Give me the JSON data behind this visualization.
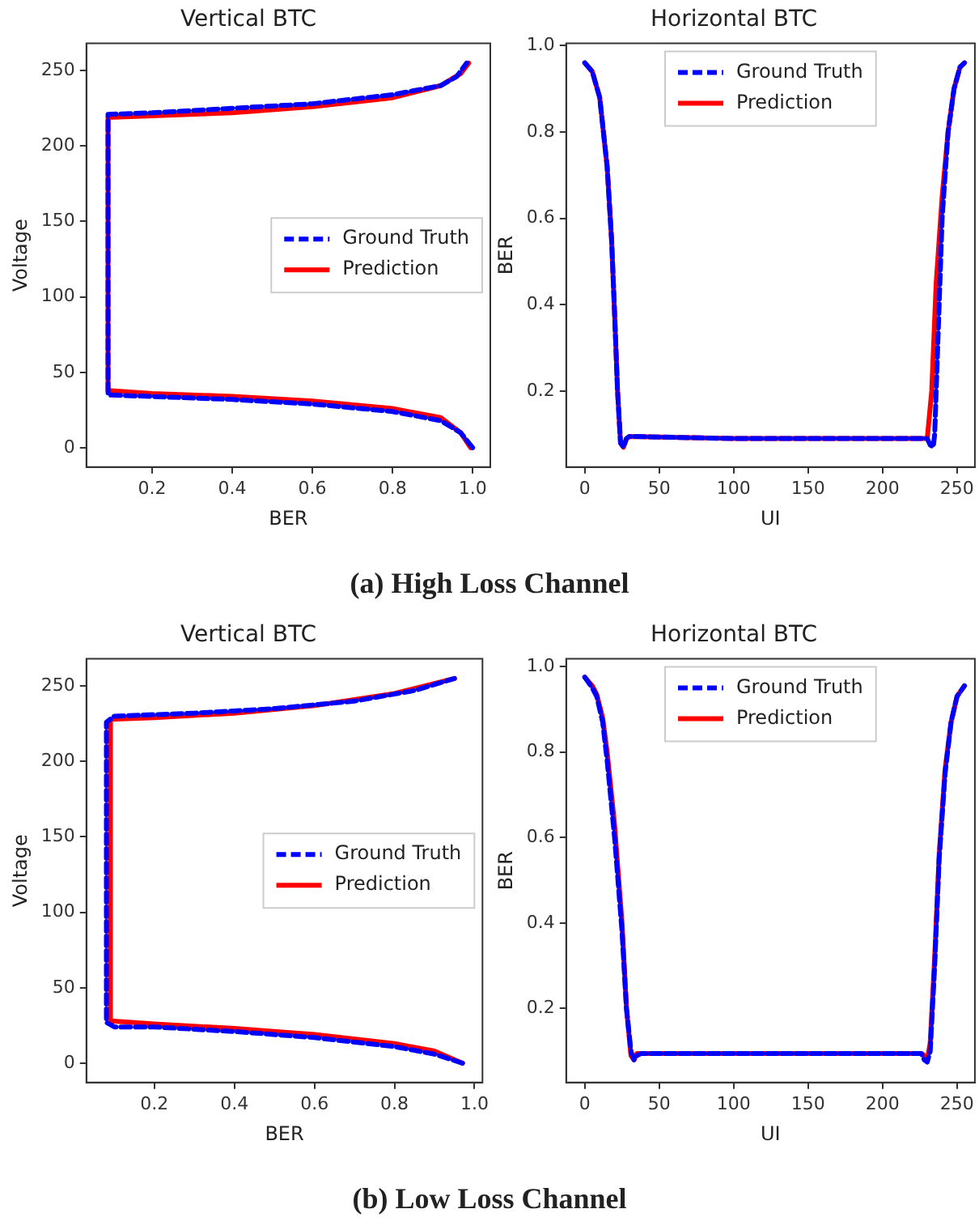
{
  "chart_data": [
    {
      "type": "line",
      "title": "Vertical BTC",
      "xlabel": "BER",
      "ylabel": "Voltage",
      "xlim": [
        0.036,
        1.044
      ],
      "ylim": [
        -12.8,
        268
      ],
      "xticks": [
        0.2,
        0.4,
        0.6,
        0.8,
        {
          "value": 1,
          "label": "1.0"
        }
      ],
      "yticks": [
        0,
        50,
        100,
        150,
        200,
        250
      ],
      "grid": false,
      "legend": "right",
      "annotations": [
        "(a) High Loss Channel"
      ],
      "series": [
        {
          "name": "Ground Truth",
          "color": "#0000ff",
          "line_style": "dashed",
          "x": [
            1.0,
            0.97,
            0.92,
            0.8,
            0.6,
            0.4,
            0.2,
            0.09,
            0.09,
            0.2,
            0.4,
            0.6,
            0.8,
            0.92,
            0.96,
            0.985
          ],
          "values": [
            0,
            10,
            18,
            24,
            29,
            32,
            34,
            35,
            221,
            222,
            225,
            228,
            234,
            240,
            246,
            255
          ]
        },
        {
          "name": "Prediction",
          "color": "#ff0000",
          "line_style": "solid",
          "x": [
            0.995,
            0.97,
            0.92,
            0.8,
            0.6,
            0.4,
            0.2,
            0.09,
            0.09,
            0.2,
            0.4,
            0.6,
            0.8,
            0.92,
            0.97,
            0.99
          ],
          "values": [
            0,
            10,
            20,
            26,
            31,
            34,
            36,
            38,
            219,
            220,
            222,
            226,
            232,
            240,
            248,
            255
          ]
        }
      ]
    },
    {
      "type": "line",
      "title": "Horizontal BTC",
      "xlabel": "UI",
      "ylabel": "BER",
      "xlim": [
        -12.5,
        262
      ],
      "ylim": [
        0.024,
        1.005
      ],
      "xticks": [
        0,
        50,
        100,
        150,
        200,
        250
      ],
      "yticks": [
        0.2,
        0.4,
        0.6,
        0.8,
        {
          "value": 1,
          "label": "1.0"
        }
      ],
      "grid": false,
      "legend": "top",
      "series": [
        {
          "name": "Ground Truth",
          "color": "#0000ff",
          "line_style": "dashed",
          "x": [
            0,
            5,
            10,
            15,
            18,
            20,
            22,
            24,
            26,
            28,
            30,
            100,
            200,
            230,
            232,
            234,
            235,
            237,
            240,
            244,
            248,
            252,
            255
          ],
          "values": [
            0.96,
            0.94,
            0.88,
            0.72,
            0.55,
            0.38,
            0.2,
            0.08,
            0.07,
            0.09,
            0.095,
            0.09,
            0.09,
            0.09,
            0.075,
            0.07,
            0.1,
            0.3,
            0.6,
            0.8,
            0.9,
            0.95,
            0.96
          ]
        },
        {
          "name": "Prediction",
          "color": "#ff0000",
          "line_style": "solid",
          "x": [
            0,
            5,
            10,
            15,
            18,
            20,
            22,
            24,
            26,
            28,
            30,
            100,
            200,
            230,
            231,
            233,
            236,
            240,
            244,
            248,
            252,
            255
          ],
          "values": [
            0.96,
            0.94,
            0.88,
            0.72,
            0.55,
            0.38,
            0.2,
            0.08,
            0.07,
            0.09,
            0.095,
            0.09,
            0.09,
            0.09,
            0.09,
            0.2,
            0.45,
            0.65,
            0.8,
            0.9,
            0.95,
            0.96
          ]
        }
      ]
    },
    {
      "type": "line",
      "title": "Vertical BTC",
      "xlabel": "BER",
      "ylabel": "Voltage",
      "xlim": [
        0.03,
        1.02
      ],
      "ylim": [
        -12.8,
        268
      ],
      "xticks": [
        0.2,
        0.4,
        0.6,
        0.8,
        {
          "value": 1,
          "label": "1.0"
        }
      ],
      "yticks": [
        0,
        50,
        100,
        150,
        200,
        250
      ],
      "grid": false,
      "legend": "right",
      "annotations": [
        "(b) Low Loss Channel"
      ],
      "series": [
        {
          "name": "Ground Truth",
          "color": "#0000ff",
          "line_style": "dashed",
          "x": [
            0.97,
            0.9,
            0.8,
            0.6,
            0.4,
            0.2,
            0.1,
            0.08,
            0.08,
            0.1,
            0.3,
            0.5,
            0.7,
            0.85,
            0.95
          ],
          "values": [
            0,
            6,
            11,
            17,
            21,
            24,
            24,
            27,
            226,
            230,
            232,
            235,
            240,
            247,
            255
          ]
        },
        {
          "name": "Prediction",
          "color": "#ff0000",
          "line_style": "solid",
          "x": [
            0.97,
            0.9,
            0.8,
            0.6,
            0.4,
            0.2,
            0.09,
            0.09,
            0.2,
            0.4,
            0.6,
            0.8,
            0.95
          ],
          "values": [
            0,
            8,
            13,
            19,
            23,
            26,
            28,
            228,
            229,
            232,
            237,
            245,
            255
          ]
        }
      ]
    },
    {
      "type": "line",
      "title": "Horizontal BTC",
      "xlabel": "UI",
      "ylabel": "BER",
      "xlim": [
        -12.5,
        262
      ],
      "ylim": [
        0.027,
        1.018
      ],
      "xticks": [
        0,
        50,
        100,
        150,
        200,
        250
      ],
      "yticks": [
        0.2,
        0.4,
        0.6,
        0.8,
        {
          "value": 1,
          "label": "1.0"
        }
      ],
      "grid": false,
      "legend": "top",
      "series": [
        {
          "name": "Ground Truth",
          "color": "#0000ff",
          "line_style": "dashed",
          "x": [
            0,
            5,
            8,
            12,
            15,
            20,
            25,
            28,
            31,
            33,
            35,
            38,
            100,
            226,
            228,
            230,
            232,
            235,
            238,
            242,
            246,
            250,
            255
          ],
          "values": [
            0.975,
            0.95,
            0.93,
            0.87,
            0.78,
            0.6,
            0.38,
            0.2,
            0.1,
            0.08,
            0.09,
            0.095,
            0.095,
            0.095,
            0.08,
            0.075,
            0.1,
            0.3,
            0.55,
            0.75,
            0.87,
            0.93,
            0.955
          ]
        },
        {
          "name": "Prediction",
          "color": "#ff0000",
          "line_style": "solid",
          "x": [
            0,
            5,
            8,
            12,
            15,
            20,
            25,
            28,
            31,
            33,
            35,
            38,
            100,
            226,
            228,
            230,
            232,
            235,
            238,
            242,
            246,
            250,
            255
          ],
          "values": [
            0.975,
            0.955,
            0.935,
            0.88,
            0.8,
            0.63,
            0.4,
            0.2,
            0.09,
            0.08,
            0.095,
            0.095,
            0.095,
            0.095,
            0.09,
            0.08,
            0.12,
            0.32,
            0.56,
            0.76,
            0.87,
            0.93,
            0.955
          ]
        }
      ]
    }
  ]
}
